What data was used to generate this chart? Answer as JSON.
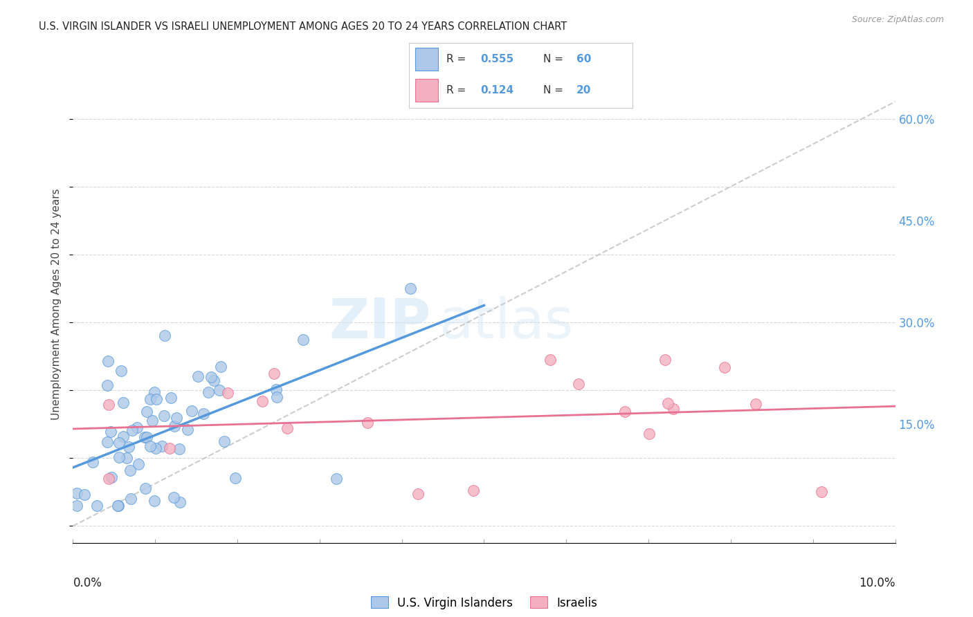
{
  "title": "U.S. VIRGIN ISLANDER VS ISRAELI UNEMPLOYMENT AMONG AGES 20 TO 24 YEARS CORRELATION CHART",
  "source": "Source: ZipAtlas.com",
  "ylabel": "Unemployment Among Ages 20 to 24 years",
  "legend_label1": "U.S. Virgin Islanders",
  "legend_label2": "Israelis",
  "r1": 0.555,
  "n1": 60,
  "r2": 0.124,
  "n2": 20,
  "color_blue": "#adc8e8",
  "color_pink": "#f4afc0",
  "color_blue_line": "#5599dd",
  "color_pink_line": "#e87090",
  "color_diag": "#c0c0c0",
  "right_ytick_labels": [
    "15.0%",
    "30.0%",
    "45.0%",
    "60.0%"
  ],
  "right_ytick_values": [
    0.15,
    0.3,
    0.45,
    0.6
  ],
  "xmin": 0.0,
  "xmax": 0.1,
  "ymin": -0.025,
  "ymax": 0.68
}
